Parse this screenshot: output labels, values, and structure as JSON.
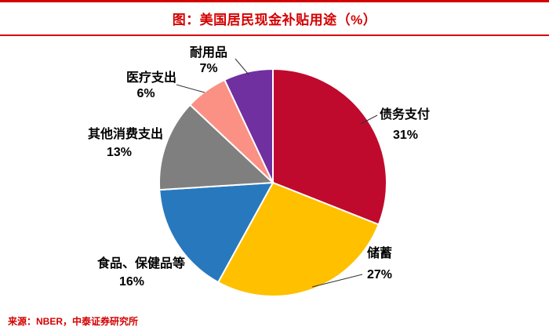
{
  "header": {
    "title": "图：美国居民现金补贴用途（%）"
  },
  "footer": {
    "source": "来源：NBER，中泰证券研究所"
  },
  "colors": {
    "accent_red": "#d40000"
  },
  "chart_data": {
    "type": "pie",
    "title": "图：美国居民现金补贴用途（%）",
    "start_angle_deg": 0,
    "direction": "clockwise",
    "legend_position": "outside-labels",
    "slices": [
      {
        "label": "债务支付",
        "value": 31,
        "display": "31%",
        "color": "#c00a2d"
      },
      {
        "label": "储蓄",
        "value": 27,
        "display": "27%",
        "color": "#ffc000"
      },
      {
        "label": "食品、保健品等",
        "value": 16,
        "display": "16%",
        "color": "#2878be"
      },
      {
        "label": "其他消费支出",
        "value": 13,
        "display": "13%",
        "color": "#7f7f7f"
      },
      {
        "label": "医疗支出",
        "value": 6,
        "display": "6%",
        "color": "#fb9184"
      },
      {
        "label": "耐用品",
        "value": 7,
        "display": "7%",
        "color": "#7030a0"
      }
    ]
  }
}
